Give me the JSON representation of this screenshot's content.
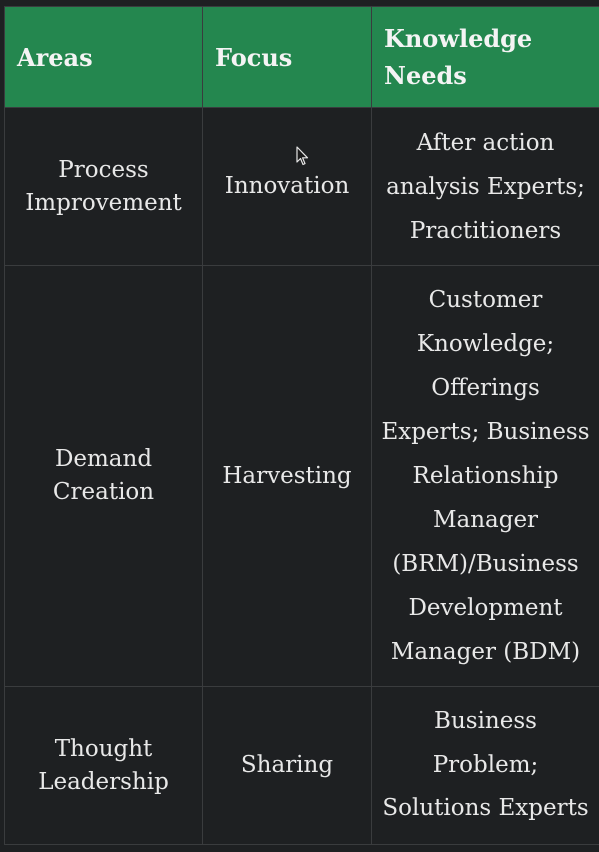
{
  "table": {
    "headers": [
      "Areas",
      "Focus",
      "Knowledge Needs"
    ],
    "rows": [
      {
        "area": "Process Improvement",
        "focus": "Innovation",
        "needs": "After action analysis Experts; Practitioners"
      },
      {
        "area": "Demand Creation",
        "focus": "Harvesting",
        "needs": "Customer Knowledge; Offerings Experts; Business Relationship Manager (BRM)/Business Development Manager (BDM)"
      },
      {
        "area": "Thought Leadership",
        "focus": "Sharing",
        "needs": "Business Problem; Solutions Experts"
      }
    ]
  },
  "colors": {
    "header_bg": "#24874f",
    "body_bg": "#1e2022",
    "border": "#3a3c3e",
    "text": "#e8e8e8"
  },
  "icons": {
    "cursor": "mouse-pointer-icon"
  }
}
